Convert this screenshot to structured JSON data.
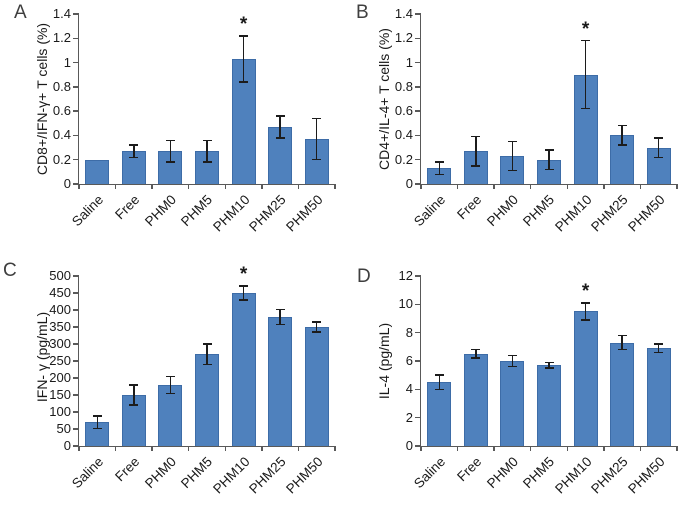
{
  "figure": {
    "background": "#ffffff",
    "panels": [
      {
        "letter": "A"
      },
      {
        "letter": "B"
      },
      {
        "letter": "C"
      },
      {
        "letter": "D"
      }
    ]
  },
  "colors": {
    "bar_fill": "#4f81bd",
    "bar_border": "#3d6ca7",
    "error_bar": "#1c1c1c",
    "axis_line": "#595959"
  },
  "chart_data": [
    {
      "panel": "A",
      "type": "bar",
      "title": "",
      "xlabel": "",
      "ylabel": "CD8+/IFN-γ+ T cells (%)",
      "categories": [
        "Saline",
        "Free",
        "PHM0",
        "PHM5",
        "PHM10",
        "PHM25",
        "PHM50"
      ],
      "values": [
        0.2,
        0.27,
        0.27,
        0.27,
        1.03,
        0.47,
        0.37
      ],
      "errors": [
        0,
        0.05,
        0.09,
        0.09,
        0.19,
        0.09,
        0.17
      ],
      "ylim": [
        0,
        1.4
      ],
      "yticks": [
        "0",
        "0.2",
        "0.4",
        "0.6",
        "0.8",
        "1",
        "1.2",
        "1.4"
      ],
      "grid": false,
      "legend_position": "none",
      "significance": {
        "category": "PHM10",
        "symbol": "*"
      }
    },
    {
      "panel": "B",
      "type": "bar",
      "title": "",
      "xlabel": "",
      "ylabel": "CD4+/IL-4+ T cells (%)",
      "categories": [
        "Saline",
        "Free",
        "PHM0",
        "PHM5",
        "PHM10",
        "PHM25",
        "PHM50"
      ],
      "values": [
        0.13,
        0.27,
        0.23,
        0.2,
        0.9,
        0.4,
        0.3
      ],
      "errors": [
        0.05,
        0.12,
        0.12,
        0.08,
        0.28,
        0.08,
        0.08
      ],
      "ylim": [
        0,
        1.4
      ],
      "yticks": [
        "0",
        "0.2",
        "0.4",
        "0.6",
        "0.8",
        "1",
        "1.2",
        "1.4"
      ],
      "grid": false,
      "legend_position": "none",
      "significance": {
        "category": "PHM10",
        "symbol": "*"
      }
    },
    {
      "panel": "C",
      "type": "bar",
      "title": "",
      "xlabel": "",
      "ylabel": "IFN- γ  (pg/mL)",
      "categories": [
        "Saline",
        "Free",
        "PHM0",
        "PHM5",
        "PHM10",
        "PHM25",
        "PHM50"
      ],
      "values": [
        70,
        150,
        180,
        270,
        450,
        380,
        350
      ],
      "errors": [
        18,
        30,
        25,
        30,
        20,
        22,
        15
      ],
      "ylim": [
        0,
        500
      ],
      "yticks": [
        "0",
        "50",
        "100",
        "150",
        "200",
        "250",
        "300",
        "350",
        "400",
        "450",
        "500"
      ],
      "grid": false,
      "legend_position": "none",
      "significance": {
        "category": "PHM10",
        "symbol": "*"
      }
    },
    {
      "panel": "D",
      "type": "bar",
      "title": "",
      "xlabel": "",
      "ylabel": "IL-4 (pg/mL)",
      "categories": [
        "Saline",
        "Free",
        "PHM0",
        "PHM5",
        "PHM10",
        "PHM25",
        "PHM50"
      ],
      "values": [
        4.5,
        6.5,
        6.0,
        5.7,
        9.5,
        7.3,
        6.9
      ],
      "errors": [
        0.5,
        0.3,
        0.4,
        0.2,
        0.6,
        0.5,
        0.3
      ],
      "ylim": [
        0,
        12
      ],
      "yticks": [
        "0",
        "2",
        "4",
        "6",
        "8",
        "10",
        "12"
      ],
      "grid": false,
      "legend_position": "none",
      "significance": {
        "category": "PHM10",
        "symbol": "*"
      }
    }
  ]
}
